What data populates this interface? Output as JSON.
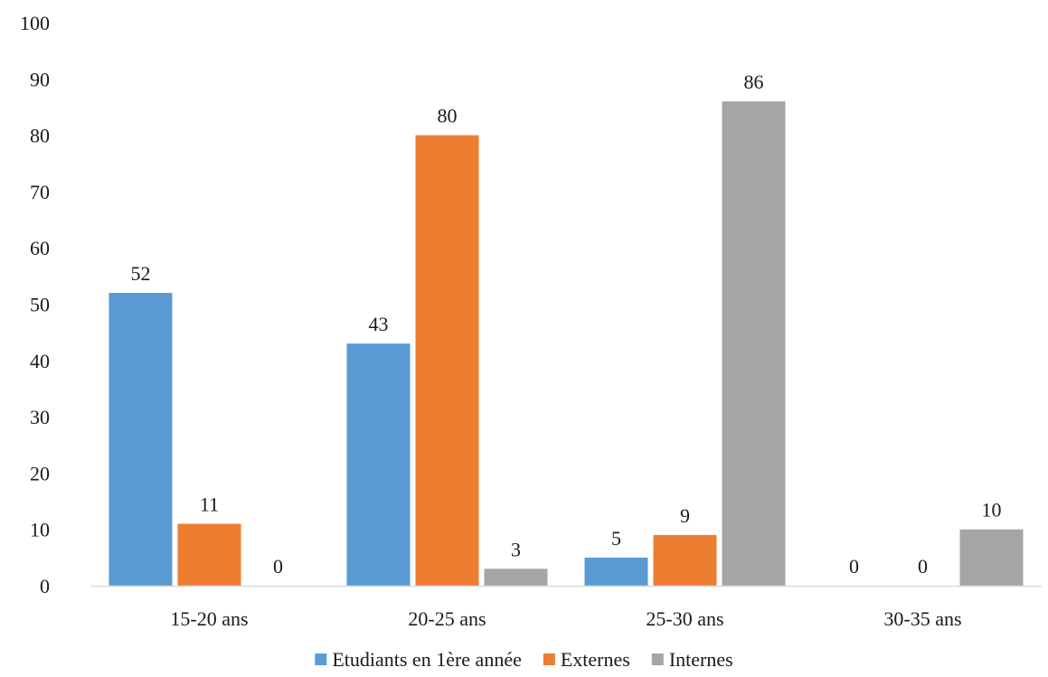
{
  "chart_data": {
    "type": "bar",
    "title": "",
    "xlabel": "",
    "ylabel": "",
    "ylim": [
      0,
      100
    ],
    "yticks": [
      0,
      10,
      20,
      30,
      40,
      50,
      60,
      70,
      80,
      90,
      100
    ],
    "grid": false,
    "legend_position": "bottom",
    "categories": [
      "15-20 ans",
      "20-25 ans",
      "25-30 ans",
      "30-35 ans"
    ],
    "series": [
      {
        "name": "Etudiants en 1ère année",
        "color": "#5B9BD5",
        "values": [
          52,
          43,
          5,
          0
        ]
      },
      {
        "name": "Externes",
        "color": "#ED7D31",
        "values": [
          11,
          80,
          9,
          0
        ]
      },
      {
        "name": "Internes",
        "color": "#A5A5A5",
        "values": [
          0,
          3,
          86,
          10
        ]
      }
    ]
  }
}
